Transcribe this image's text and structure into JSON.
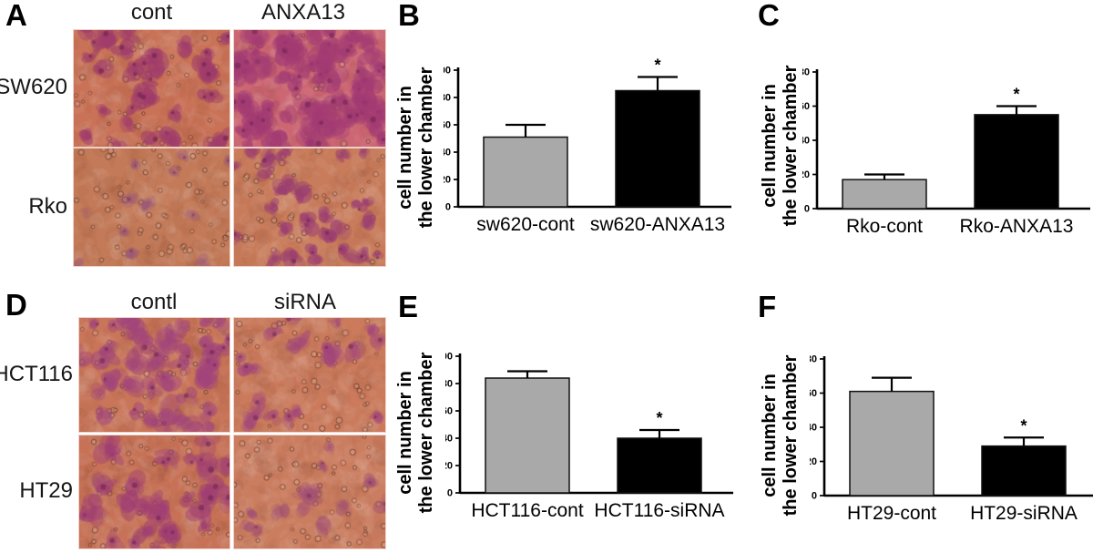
{
  "figure": {
    "background": "#ffffff"
  },
  "panels": [
    {
      "letter": "A",
      "col_labels": [
        "cont",
        "ANXA13"
      ],
      "row_labels": [
        "SW620",
        "Rko"
      ],
      "images": [
        {
          "name": "SW620-cont",
          "description": "transwell migration micrograph, moderate cell density",
          "bg": "#c97257",
          "cell_color": "#a03c6c",
          "cells": 38,
          "rings": 42,
          "cell_size": [
            8,
            15
          ],
          "cell_alpha": 0.55
        },
        {
          "name": "SW620-ANXA13",
          "description": "transwell migration micrograph, high cell density",
          "bg": "#cc6672",
          "cell_color": "#a33b74",
          "cells": 88,
          "rings": 22,
          "cell_size": [
            9,
            17
          ],
          "cell_alpha": 0.5
        },
        {
          "name": "Rko-cont",
          "description": "transwell migration micrograph, low cell density",
          "bg": "#c37a58",
          "cell_color": "#96537a",
          "cells": 14,
          "rings": 60,
          "cell_size": [
            6,
            12
          ],
          "cell_alpha": 0.32
        },
        {
          "name": "Rko-ANXA13",
          "description": "transwell migration micrograph, moderate cell density",
          "bg": "#c97c5b",
          "cell_color": "#9b3d72",
          "cells": 32,
          "rings": 50,
          "cell_size": [
            7,
            14
          ],
          "cell_alpha": 0.52
        }
      ]
    },
    {
      "letter": "D",
      "col_labels": [
        "contl",
        "siRNA"
      ],
      "row_labels": [
        "HCT116",
        "HT29"
      ],
      "images": [
        {
          "name": "HCT116-cont",
          "description": "transwell migration micrograph, high cell density",
          "bg": "#c97559",
          "cell_color": "#a2457c",
          "cells": 46,
          "rings": 50,
          "cell_size": [
            8,
            15
          ],
          "cell_alpha": 0.5
        },
        {
          "name": "HCT116-siRNA",
          "description": "transwell migration micrograph, reduced cell density",
          "bg": "#cb7b5c",
          "cell_color": "#a2457c",
          "cells": 20,
          "rings": 48,
          "cell_size": [
            7,
            14
          ],
          "cell_alpha": 0.45
        },
        {
          "name": "HT29-cont",
          "description": "transwell migration micrograph, moderate cell density",
          "bg": "#c77257",
          "cell_color": "#a03f74",
          "cells": 34,
          "rings": 46,
          "cell_size": [
            8,
            16
          ],
          "cell_alpha": 0.5
        },
        {
          "name": "HT29-siRNA",
          "description": "transwell migration micrograph, low cell density",
          "bg": "#cb7d5f",
          "cell_color": "#9d4a78",
          "cells": 13,
          "rings": 55,
          "cell_size": [
            7,
            13
          ],
          "cell_alpha": 0.38
        }
      ]
    }
  ],
  "chart_data": [
    {
      "panel": "B",
      "type": "bar",
      "categories": [
        "sw620-cont",
        "sw620-ANXA13"
      ],
      "values": [
        51,
        85
      ],
      "errors": [
        9,
        10
      ],
      "significance": [
        "",
        "*"
      ],
      "bar_colors": [
        "#a9a9a9",
        "#000000"
      ],
      "ylabel": "cell number in the lower chamber",
      "ylabel_line1": "cell number in",
      "ylabel_line2": "the lower chamber",
      "ylim": [
        0,
        100
      ],
      "ytick_step": 20,
      "title": "",
      "xlabel": "",
      "grid": false,
      "legend": "none"
    },
    {
      "panel": "C",
      "type": "bar",
      "categories": [
        "Rko-cont",
        "Rko-ANXA13"
      ],
      "values": [
        17,
        55
      ],
      "errors": [
        3,
        5
      ],
      "significance": [
        "",
        "*"
      ],
      "bar_colors": [
        "#a9a9a9",
        "#000000"
      ],
      "ylabel": "cell number in the lower chamber",
      "ylabel_line1": "cell number in",
      "ylabel_line2": "the lower chamber",
      "ylim": [
        0,
        80
      ],
      "ytick_step": 20,
      "title": "",
      "xlabel": "",
      "grid": false,
      "legend": "none"
    },
    {
      "panel": "E",
      "type": "bar",
      "categories": [
        "HCT116-cont",
        "HCT116-siRNA"
      ],
      "values": [
        84,
        40
      ],
      "errors": [
        5,
        6
      ],
      "significance": [
        "",
        "*"
      ],
      "bar_colors": [
        "#a9a9a9",
        "#000000"
      ],
      "ylabel": "cell number in the lower chamber",
      "ylabel_line1": "cell number in",
      "ylabel_line2": "the lower chamber",
      "ylim": [
        0,
        100
      ],
      "ytick_step": 20,
      "title": "",
      "xlabel": "",
      "grid": false,
      "legend": "none"
    },
    {
      "panel": "F",
      "type": "bar",
      "categories": [
        "HT29-cont",
        "HT29-siRNA"
      ],
      "values": [
        61,
        29
      ],
      "errors": [
        8,
        5
      ],
      "significance": [
        "",
        "*"
      ],
      "bar_colors": [
        "#a9a9a9",
        "#000000"
      ],
      "ylabel": "cell number in the lower chamber",
      "ylabel_line1": "cell number in",
      "ylabel_line2": "the lower chamber",
      "ylim": [
        0,
        80
      ],
      "ytick_step": 20,
      "title": "",
      "xlabel": "",
      "grid": false,
      "legend": "none"
    }
  ]
}
